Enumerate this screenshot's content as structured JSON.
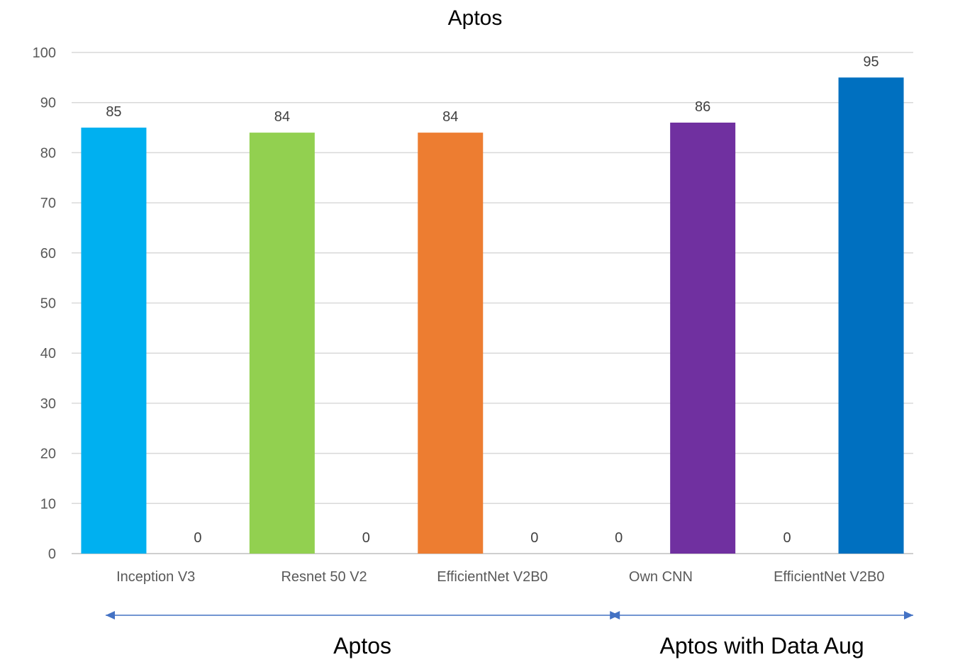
{
  "chart_data": {
    "type": "bar",
    "title": "Aptos",
    "xlabel": "",
    "ylabel": "",
    "ylim": [
      0,
      100
    ],
    "yticks": [
      0,
      10,
      20,
      30,
      40,
      50,
      60,
      70,
      80,
      90,
      100
    ],
    "grid": true,
    "categories": [
      "Inception V3",
      "Resnet 50 V2",
      "EfficientNet V2B0",
      "Own CNN",
      "EfficientNet V2B0"
    ],
    "series": [
      {
        "name": "",
        "values": [
          85,
          84,
          84,
          0,
          0
        ],
        "colors": [
          "#00B0F0",
          "#92D050",
          "#ED7D31",
          "#7030A0",
          "#0070C0"
        ]
      },
      {
        "name": "",
        "values": [
          0,
          0,
          0,
          86,
          95
        ],
        "colors": [
          "#00B0F0",
          "#92D050",
          "#ED7D31",
          "#7030A0",
          "#0070C0"
        ]
      }
    ],
    "groups": [
      {
        "label": "Aptos",
        "categories": [
          0,
          1,
          2
        ]
      },
      {
        "label": "Aptos with Data Aug",
        "categories": [
          3,
          4
        ]
      }
    ],
    "arrow_color": "#4472C4"
  }
}
